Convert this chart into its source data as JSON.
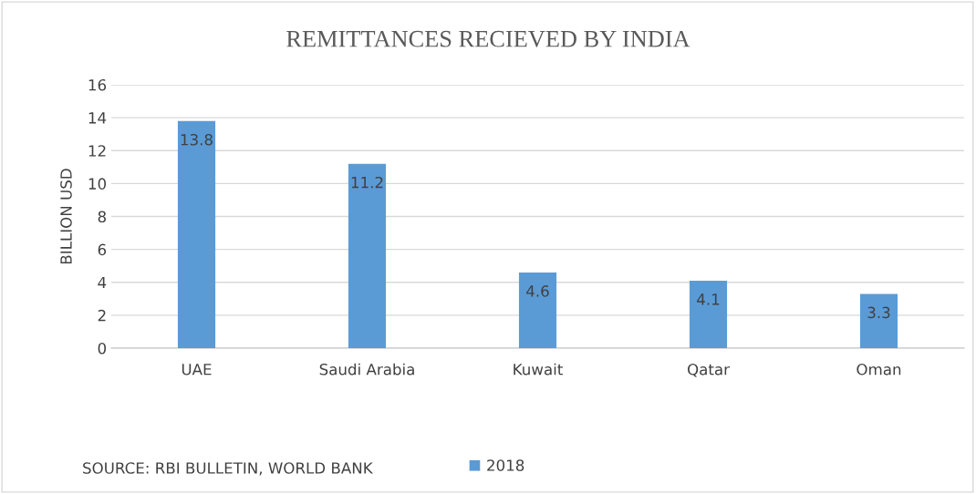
{
  "chart_data": {
    "type": "bar",
    "title": "REMITTANCES RECIEVED BY INDIA",
    "ylabel": "BILLION USD",
    "categories": [
      "UAE",
      "Saudi Arabia",
      "Kuwait",
      "Qatar",
      "Oman"
    ],
    "series": [
      {
        "name": "2018",
        "color": "#5b9bd5",
        "values": [
          13.8,
          11.2,
          4.6,
          4.1,
          3.3
        ]
      }
    ],
    "ylim": [
      0,
      16
    ],
    "yticks": [
      0,
      2,
      4,
      6,
      8,
      10,
      12,
      14,
      16
    ],
    "grid": "y",
    "legend": "bottom",
    "data_labels": true,
    "annotations": [
      "SOURCE: RBI BULLETIN, WORLD BANK"
    ]
  }
}
